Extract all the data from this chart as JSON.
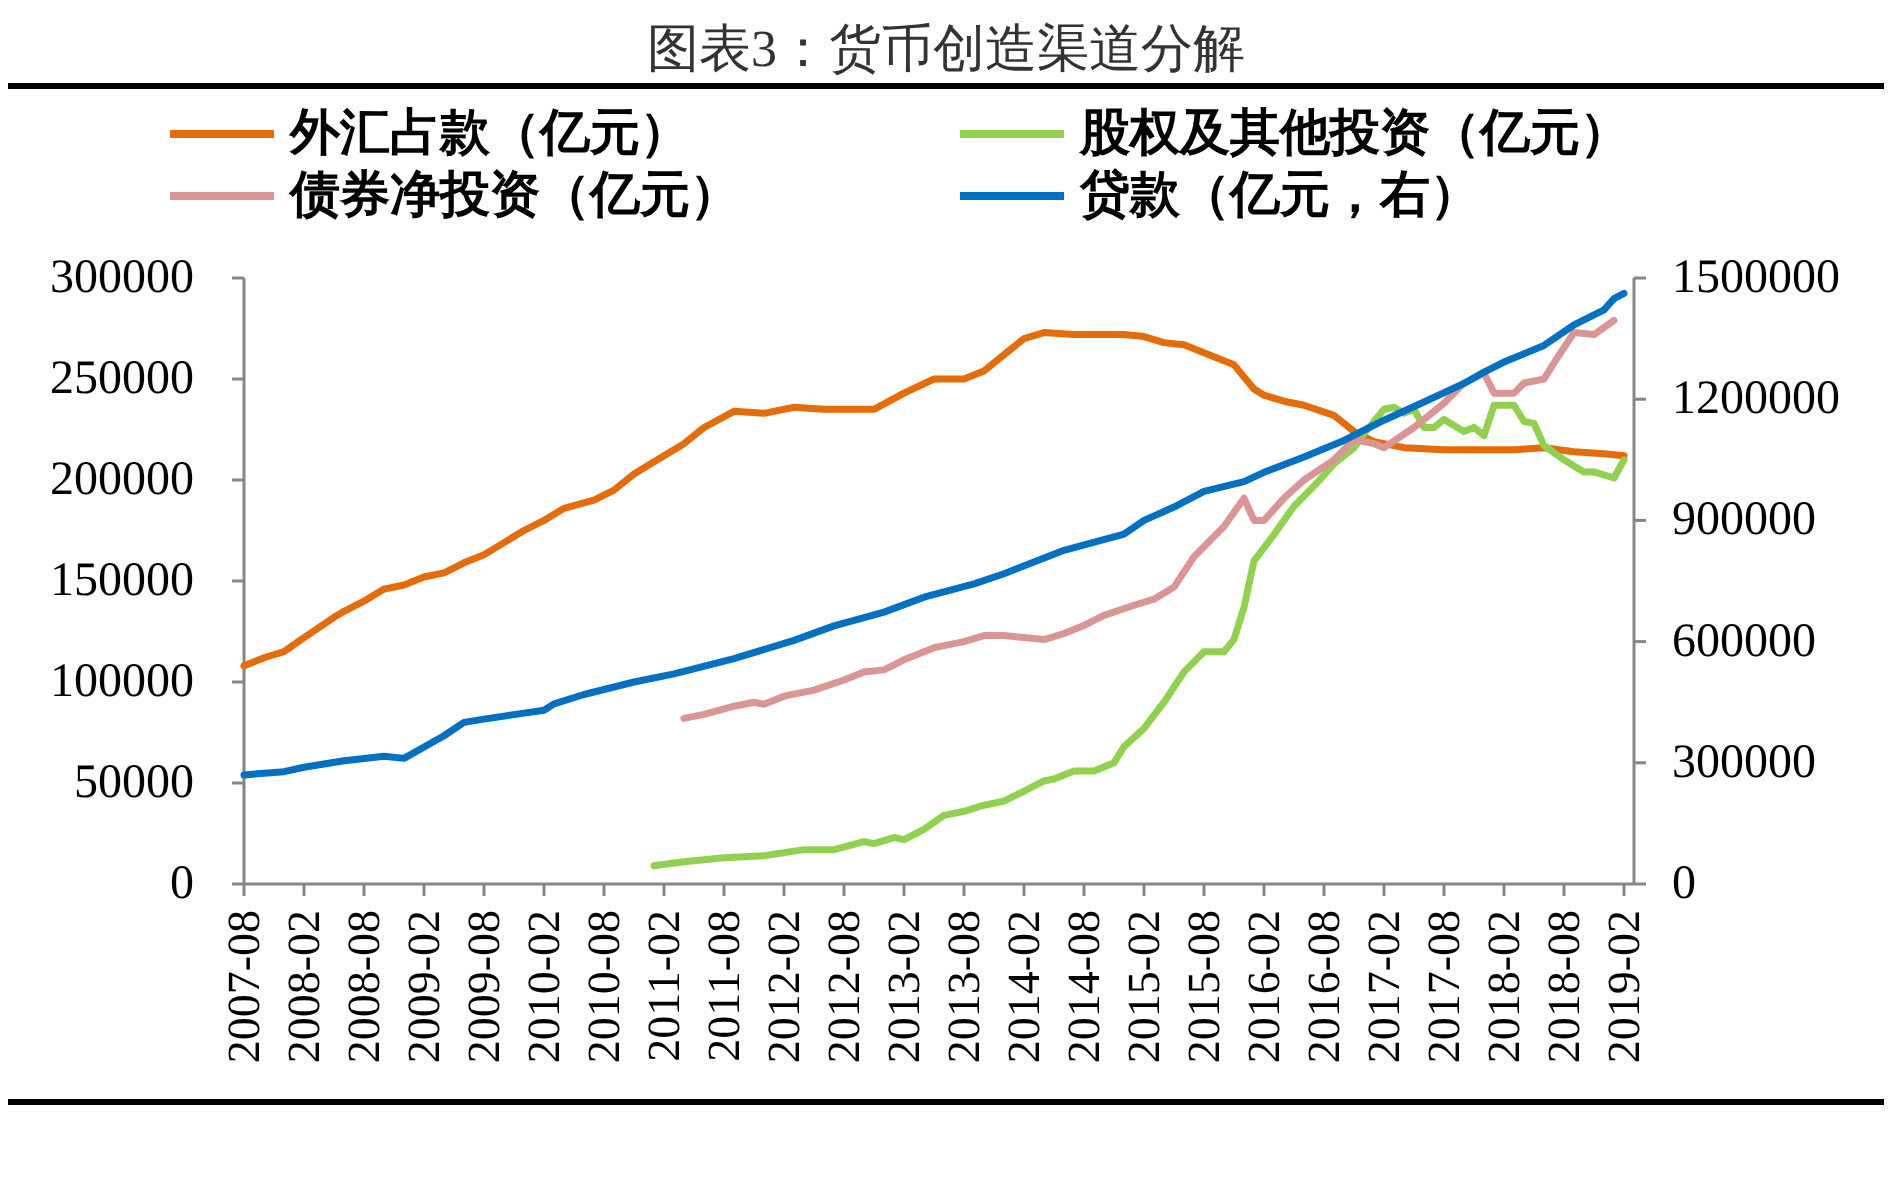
{
  "chart_data": {
    "type": "line",
    "title": "图表3：货币创造渠道分解",
    "xlim": [
      "2007-08",
      "2019-03"
    ],
    "xticks": [
      "2007-08",
      "2008-02",
      "2008-08",
      "2009-02",
      "2009-08",
      "2010-02",
      "2010-08",
      "2011-02",
      "2011-08",
      "2012-02",
      "2012-08",
      "2013-02",
      "2013-08",
      "2014-02",
      "2014-08",
      "2015-02",
      "2015-08",
      "2016-02",
      "2016-08",
      "2017-02",
      "2017-08",
      "2018-02",
      "2018-08",
      "2019-02"
    ],
    "ylim": [
      0,
      300000
    ],
    "yticks": [
      0,
      50000,
      100000,
      150000,
      200000,
      250000,
      300000
    ],
    "y2lim": [
      0,
      1500000
    ],
    "y2ticks": [
      0,
      300000,
      600000,
      900000,
      1200000,
      1500000
    ],
    "legend": "top",
    "series": [
      {
        "name": "外汇占款（亿元）",
        "color": "#e46c0a",
        "x": [
          "2007-08",
          "2007-10",
          "2007-12",
          "2008-02",
          "2008-05",
          "2008-06",
          "2008-08",
          "2008-10",
          "2008-12",
          "2009-02",
          "2009-04",
          "2009-06",
          "2009-08",
          "2009-10",
          "2009-12",
          "2010-02",
          "2010-04",
          "2010-07",
          "2010-09",
          "2010-11",
          "2011-02",
          "2011-04",
          "2011-06",
          "2011-09",
          "2011-12",
          "2012-03",
          "2012-06",
          "2012-11",
          "2013-02",
          "2013-05",
          "2013-08",
          "2013-10",
          "2013-12",
          "2014-02",
          "2014-04",
          "2014-07",
          "2014-12",
          "2015-02",
          "2015-04",
          "2015-06",
          "2015-10",
          "2015-11",
          "2016-01",
          "2016-02",
          "2016-04",
          "2016-06",
          "2016-09",
          "2016-11",
          "2017-01",
          "2017-04",
          "2017-08",
          "2018-03",
          "2018-06",
          "2018-09",
          "2018-12",
          "2019-02"
        ],
        "values": [
          108000,
          112000,
          115000,
          122000,
          132000,
          135000,
          140000,
          146000,
          148000,
          152000,
          154000,
          159000,
          163000,
          169000,
          175000,
          180000,
          186000,
          190000,
          195000,
          203000,
          212000,
          218000,
          226000,
          234000,
          233000,
          236000,
          235000,
          235000,
          243000,
          250000,
          250000,
          254000,
          262000,
          270000,
          273000,
          272000,
          272000,
          271000,
          268000,
          267000,
          259000,
          257000,
          245000,
          242000,
          239000,
          237000,
          232000,
          224000,
          219000,
          216000,
          215000,
          215000,
          216000,
          214000,
          213000,
          212000
        ]
      },
      {
        "name": "股权及其他投资（亿元）",
        "color": "#92d050",
        "x": [
          "2011-01",
          "2011-04",
          "2011-08",
          "2011-12",
          "2012-04",
          "2012-07",
          "2012-10",
          "2012-11",
          "2013-01",
          "2013-02",
          "2013-04",
          "2013-06",
          "2013-08",
          "2013-10",
          "2013-12",
          "2014-02",
          "2014-04",
          "2014-05",
          "2014-07",
          "2014-09",
          "2014-11",
          "2014-12",
          "2015-02",
          "2015-04",
          "2015-06",
          "2015-08",
          "2015-10",
          "2015-11",
          "2015-12",
          "2016-01",
          "2016-03",
          "2016-05",
          "2016-07",
          "2016-09",
          "2016-11",
          "2016-12",
          "2017-02",
          "2017-03",
          "2017-04",
          "2017-05",
          "2017-06",
          "2017-07",
          "2017-08",
          "2017-10",
          "2017-11",
          "2017-12",
          "2018-01",
          "2018-03",
          "2018-04",
          "2018-05",
          "2018-06",
          "2018-08",
          "2018-10",
          "2018-11",
          "2019-01",
          "2019-02"
        ],
        "values": [
          9000,
          11000,
          13000,
          14000,
          17000,
          17000,
          21000,
          20000,
          23000,
          22000,
          27000,
          34000,
          36000,
          39000,
          41000,
          46000,
          51000,
          52000,
          56000,
          56000,
          60000,
          68000,
          77000,
          90000,
          105000,
          115000,
          115000,
          121000,
          137000,
          160000,
          173000,
          187000,
          197000,
          208000,
          216000,
          223000,
          235000,
          236000,
          233000,
          235000,
          226000,
          226000,
          230000,
          224000,
          226000,
          222000,
          237000,
          237000,
          229000,
          228000,
          217000,
          210000,
          204000,
          204000,
          201000,
          210000
        ]
      },
      {
        "name": "债券净投资（亿元）",
        "color": "#d99694",
        "x": [
          "2011-04",
          "2011-06",
          "2011-09",
          "2011-11",
          "2011-12",
          "2012-02",
          "2012-05",
          "2012-08",
          "2012-10",
          "2012-12",
          "2013-02",
          "2013-05",
          "2013-08",
          "2013-10",
          "2013-12",
          "2014-02",
          "2014-04",
          "2014-06",
          "2014-08",
          "2014-10",
          "2015-01",
          "2015-03",
          "2015-05",
          "2015-07",
          "2015-10",
          "2015-12",
          "2016-01",
          "2016-02",
          "2016-04",
          "2016-06",
          "2016-09",
          "2016-11",
          "2017-01",
          "2017-02",
          "2017-05",
          "2017-08",
          "2017-10",
          "2017-12",
          "2018-01",
          "2018-03",
          "2018-04",
          "2018-06",
          "2018-07",
          "2018-09",
          "2018-11",
          "2019-01"
        ],
        "values": [
          82000,
          84000,
          88000,
          90000,
          89000,
          93000,
          96000,
          101000,
          105000,
          106000,
          111000,
          117000,
          120000,
          123000,
          123000,
          122000,
          121000,
          124000,
          128000,
          133000,
          138000,
          141000,
          147000,
          162000,
          177000,
          191000,
          180000,
          180000,
          191000,
          200000,
          210000,
          220000,
          218000,
          216000,
          226000,
          238000,
          248000,
          253000,
          243000,
          243000,
          248000,
          250000,
          258000,
          273000,
          272000,
          279000
        ]
      },
      {
        "name": "贷款（亿元，右）",
        "color": "#0070c0",
        "axis": "y2",
        "x": [
          "2007-08",
          "2007-12",
          "2008-02",
          "2008-06",
          "2008-10",
          "2008-12",
          "2009-04",
          "2009-06",
          "2009-08",
          "2009-12",
          "2010-02",
          "2010-03",
          "2010-06",
          "2010-11",
          "2011-03",
          "2011-09",
          "2012-03",
          "2012-07",
          "2012-12",
          "2013-04",
          "2013-09",
          "2013-12",
          "2014-06",
          "2014-12",
          "2015-02",
          "2015-05",
          "2015-08",
          "2015-12",
          "2016-02",
          "2016-06",
          "2016-10",
          "2017-02",
          "2017-06",
          "2017-10",
          "2017-12",
          "2018-02",
          "2018-06",
          "2018-09",
          "2018-12",
          "2019-01",
          "2019-02"
        ],
        "values": [
          270000,
          278000,
          289000,
          305000,
          316000,
          311000,
          367000,
          400000,
          408000,
          423000,
          430000,
          446000,
          469000,
          500000,
          520000,
          558000,
          603000,
          639000,
          673000,
          710000,
          743000,
          768000,
          826000,
          866000,
          900000,
          933000,
          972000,
          996000,
          1019000,
          1057000,
          1098000,
          1148000,
          1193000,
          1239000,
          1267000,
          1292000,
          1333000,
          1384000,
          1421000,
          1449000,
          1462000
        ]
      }
    ]
  }
}
